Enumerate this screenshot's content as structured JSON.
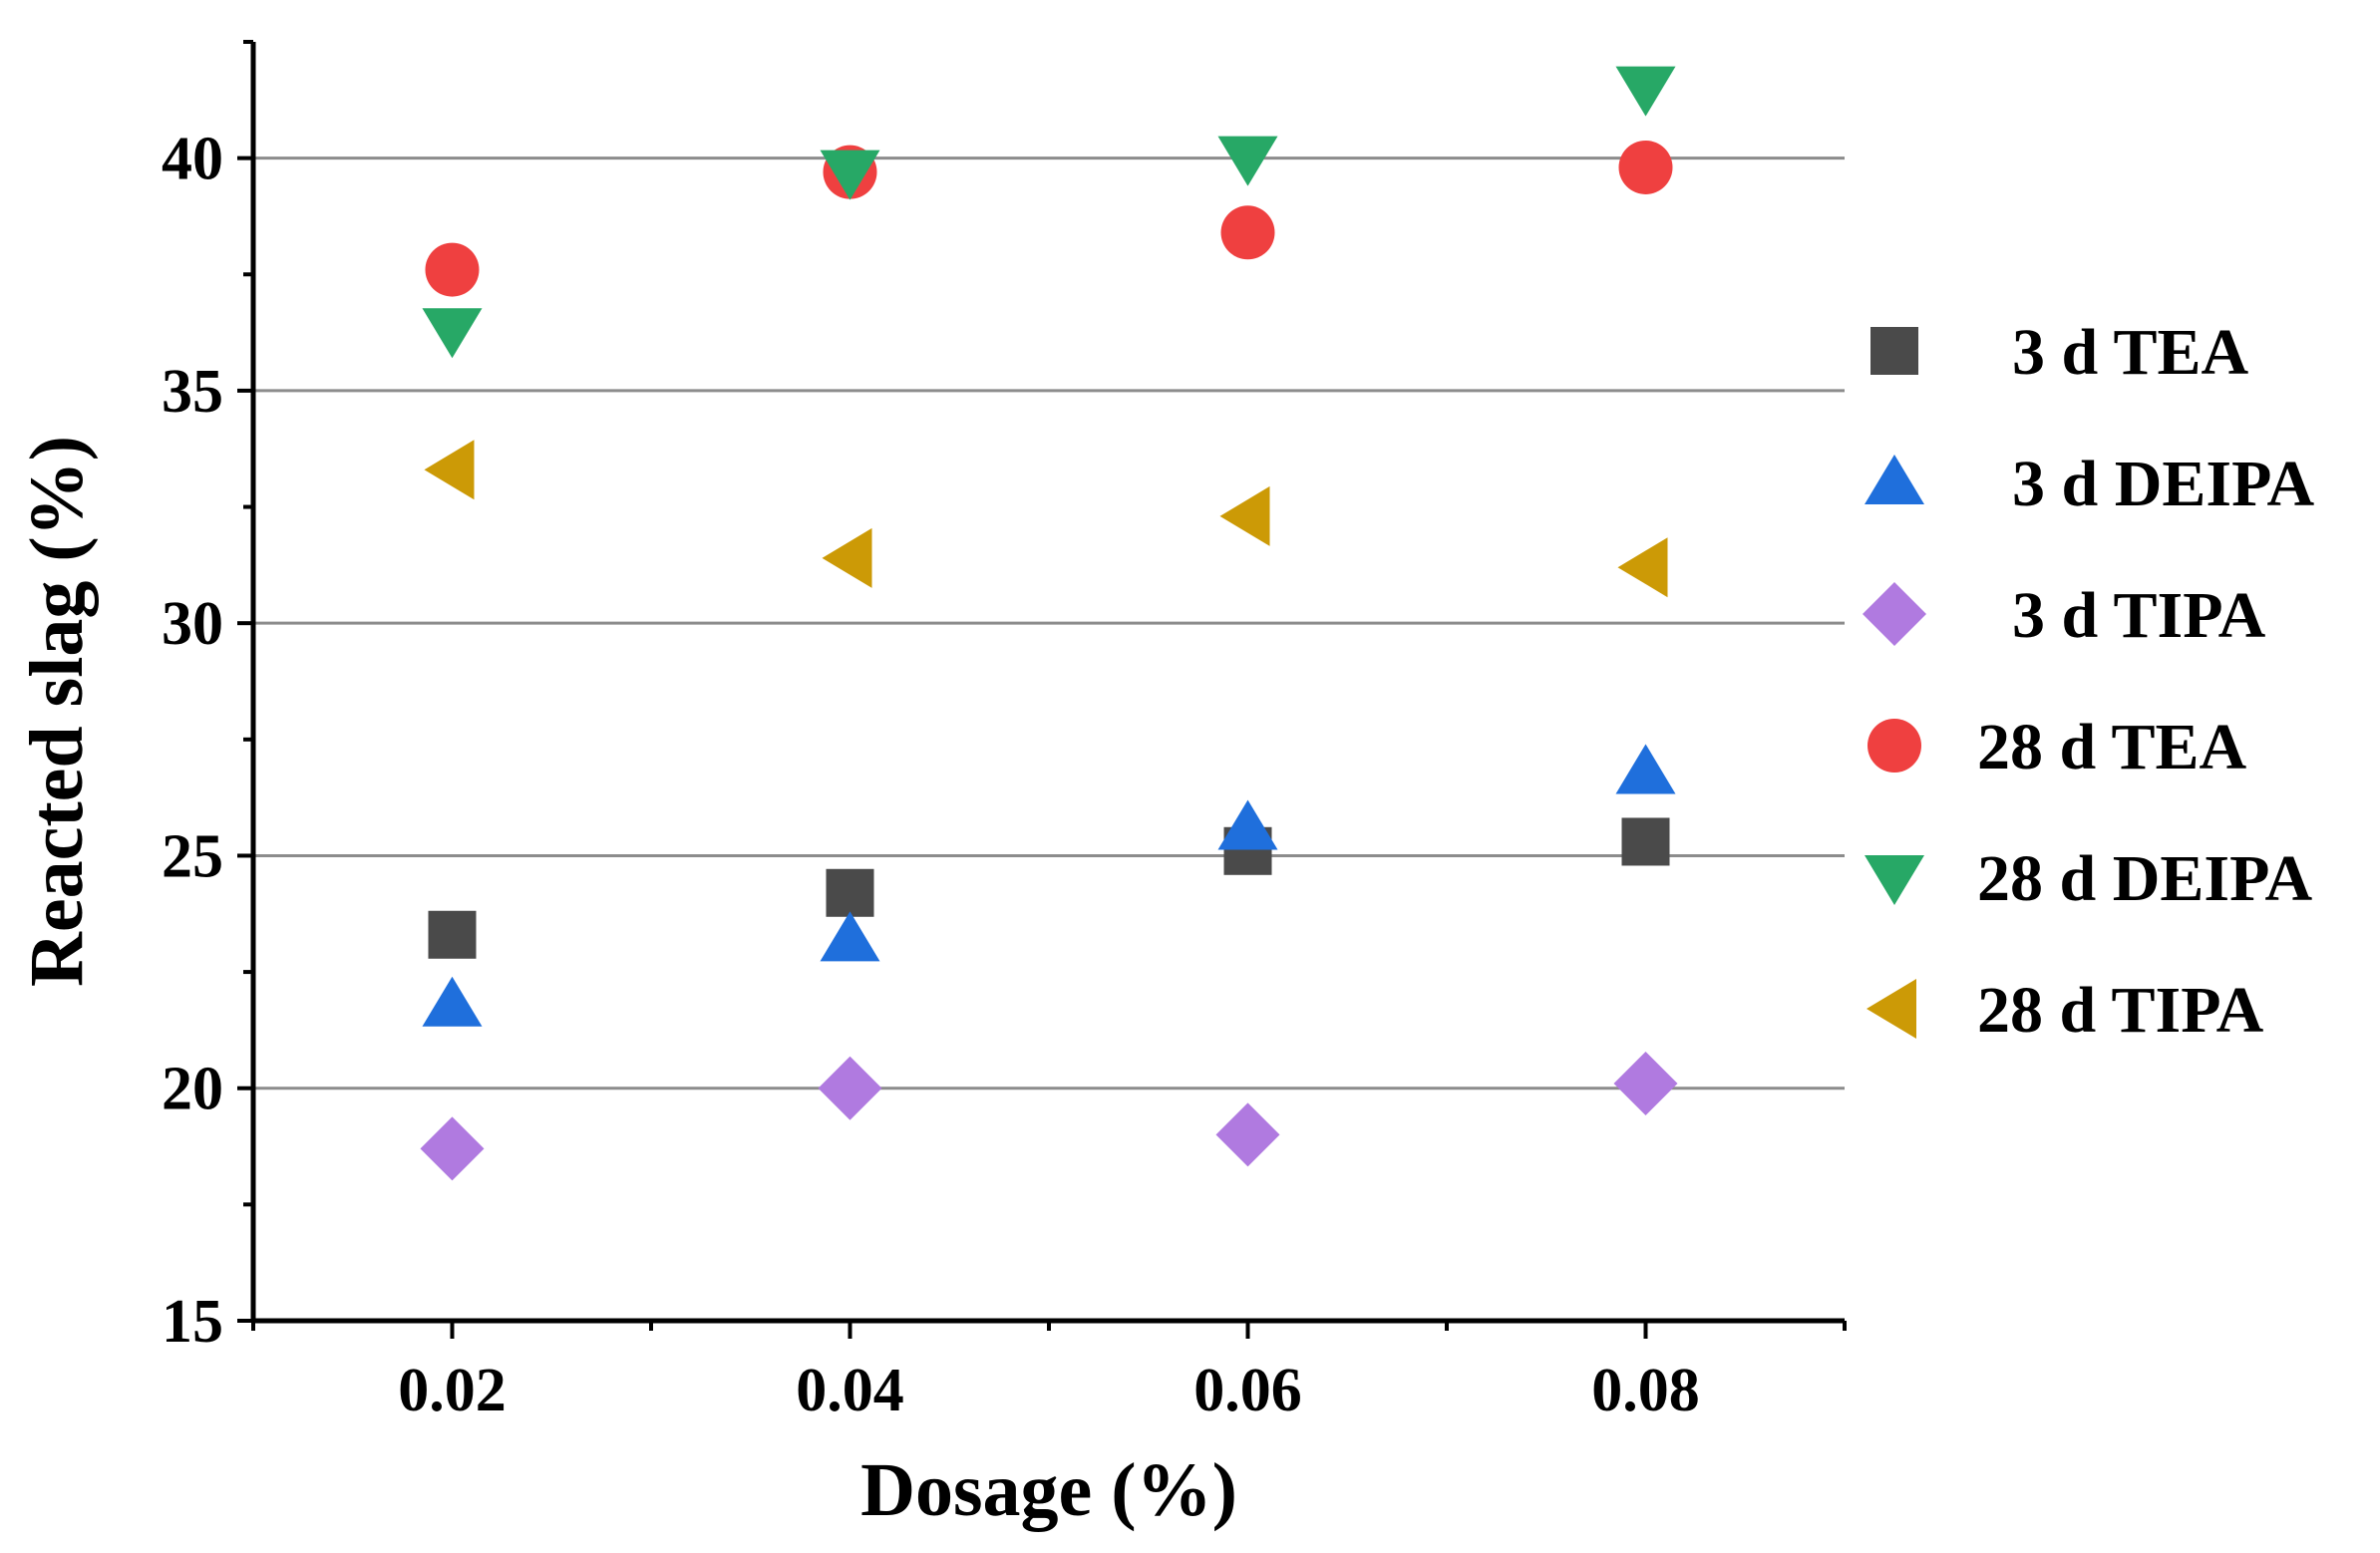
{
  "chart_data": {
    "type": "scatter",
    "title": "",
    "xlabel": "Dosage (%)",
    "ylabel": "Reacted slag (%)",
    "categories": [
      "0.02",
      "0.04",
      "0.06",
      "0.08"
    ],
    "x": [
      0.02,
      0.04,
      0.06,
      0.08
    ],
    "xlim": [
      0.01,
      0.09
    ],
    "ylim": [
      15,
      42.5
    ],
    "yticks": [
      15,
      20,
      25,
      30,
      35,
      40
    ],
    "grid": "horizontal",
    "legend_position": "right",
    "series": [
      {
        "name": "3 d TEA",
        "marker": "square",
        "color": "#4a4a4a",
        "values": [
          23.3,
          24.2,
          25.1,
          25.3
        ]
      },
      {
        "name": "3 d DEIPA",
        "marker": "triangle-up",
        "color": "#1f6fdc",
        "values": [
          21.8,
          23.2,
          25.6,
          26.8
        ]
      },
      {
        "name": "3 d TIPA",
        "marker": "diamond",
        "color": "#b07ae0",
        "values": [
          18.7,
          20.0,
          19.0,
          20.1
        ]
      },
      {
        "name": "28 d TEA",
        "marker": "circle",
        "color": "#ef4040",
        "values": [
          37.6,
          39.7,
          38.4,
          39.8
        ]
      },
      {
        "name": "28 d DEIPA",
        "marker": "triangle-down",
        "color": "#27a866",
        "values": [
          36.3,
          39.7,
          40.0,
          41.5
        ]
      },
      {
        "name": "28 d TIPA",
        "marker": "triangle-left",
        "color": "#cc9a06",
        "values": [
          33.3,
          31.4,
          32.3,
          31.2
        ]
      }
    ]
  }
}
